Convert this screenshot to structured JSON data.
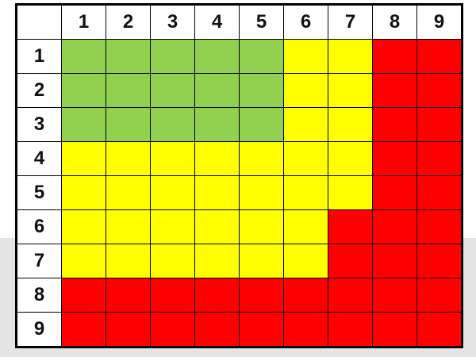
{
  "columns": [
    "1",
    "2",
    "3",
    "4",
    "5",
    "6",
    "7",
    "8",
    "9"
  ],
  "rows": [
    "1",
    "2",
    "3",
    "4",
    "5",
    "6",
    "7",
    "8",
    "9"
  ],
  "colors": {
    "G": "#92d050",
    "Y": "#ffff00",
    "R": "#ff0000"
  },
  "grid": [
    [
      "G",
      "G",
      "G",
      "G",
      "G",
      "Y",
      "Y",
      "R",
      "R"
    ],
    [
      "G",
      "G",
      "G",
      "G",
      "G",
      "Y",
      "Y",
      "R",
      "R"
    ],
    [
      "G",
      "G",
      "G",
      "G",
      "G",
      "Y",
      "Y",
      "R",
      "R"
    ],
    [
      "Y",
      "Y",
      "Y",
      "Y",
      "Y",
      "Y",
      "Y",
      "R",
      "R"
    ],
    [
      "Y",
      "Y",
      "Y",
      "Y",
      "Y",
      "Y",
      "Y",
      "R",
      "R"
    ],
    [
      "Y",
      "Y",
      "Y",
      "Y",
      "Y",
      "Y",
      "R",
      "R",
      "R"
    ],
    [
      "Y",
      "Y",
      "Y",
      "Y",
      "Y",
      "Y",
      "R",
      "R",
      "R"
    ],
    [
      "R",
      "R",
      "R",
      "R",
      "R",
      "R",
      "R",
      "R",
      "R"
    ],
    [
      "R",
      "R",
      "R",
      "R",
      "R",
      "R",
      "R",
      "R",
      "R"
    ]
  ]
}
